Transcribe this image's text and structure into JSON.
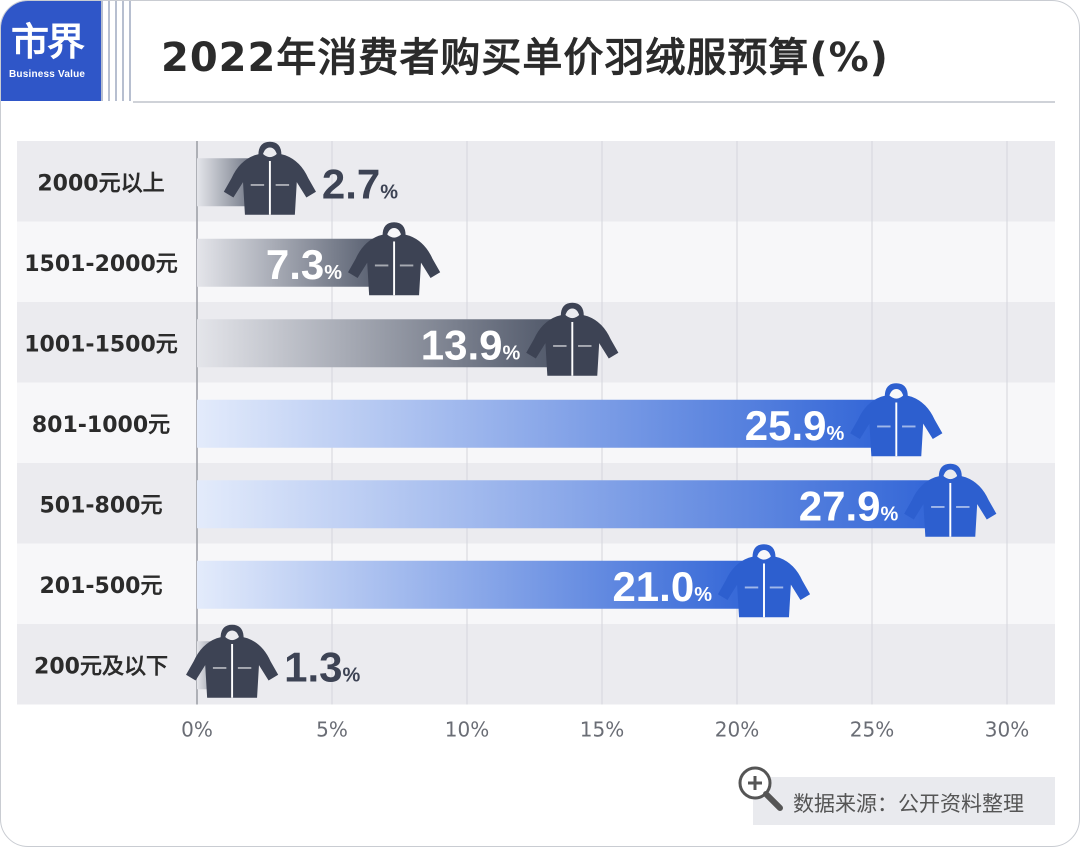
{
  "header": {
    "logo_cn": "市界",
    "logo_en": "Business Value",
    "title": "2022年消费者购买单价羽绒服预算(%)"
  },
  "footer": {
    "source": "数据来源：公开资料整理",
    "source_icon": "magnifier-plus-icon"
  },
  "colors": {
    "gray_bar": "#4a5264",
    "blue_bar": "#2f63d6",
    "gray_jacket": "#3d4354",
    "blue_jacket": "#2d5fcf",
    "row_dark": "#ebebef",
    "row_light": "#f7f7f9"
  },
  "chart_data": {
    "type": "bar",
    "orientation": "horizontal",
    "title": "2022年消费者购买单价羽绒服预算(%)",
    "categories": [
      "2000元以上",
      "1501-2000元",
      "1001-1500元",
      "801-1000元",
      "501-800元",
      "201-500元",
      "200元及以下"
    ],
    "values": [
      2.7,
      7.3,
      13.9,
      25.9,
      27.9,
      21.0,
      1.3
    ],
    "value_labels": [
      "2.7",
      "7.3",
      "13.9",
      "25.9",
      "27.9",
      "21.0",
      "1.3"
    ],
    "value_unit": "%",
    "bar_color_group": [
      "gray",
      "gray",
      "gray",
      "blue",
      "blue",
      "blue",
      "gray"
    ],
    "xlim": [
      0,
      30
    ],
    "x_ticks": [
      0,
      5,
      10,
      15,
      20,
      25,
      30
    ],
    "x_tick_labels": [
      "0%",
      "5%",
      "10%",
      "15%",
      "20%",
      "25%",
      "30%"
    ],
    "grid": true,
    "xlabel": "",
    "ylabel": ""
  }
}
